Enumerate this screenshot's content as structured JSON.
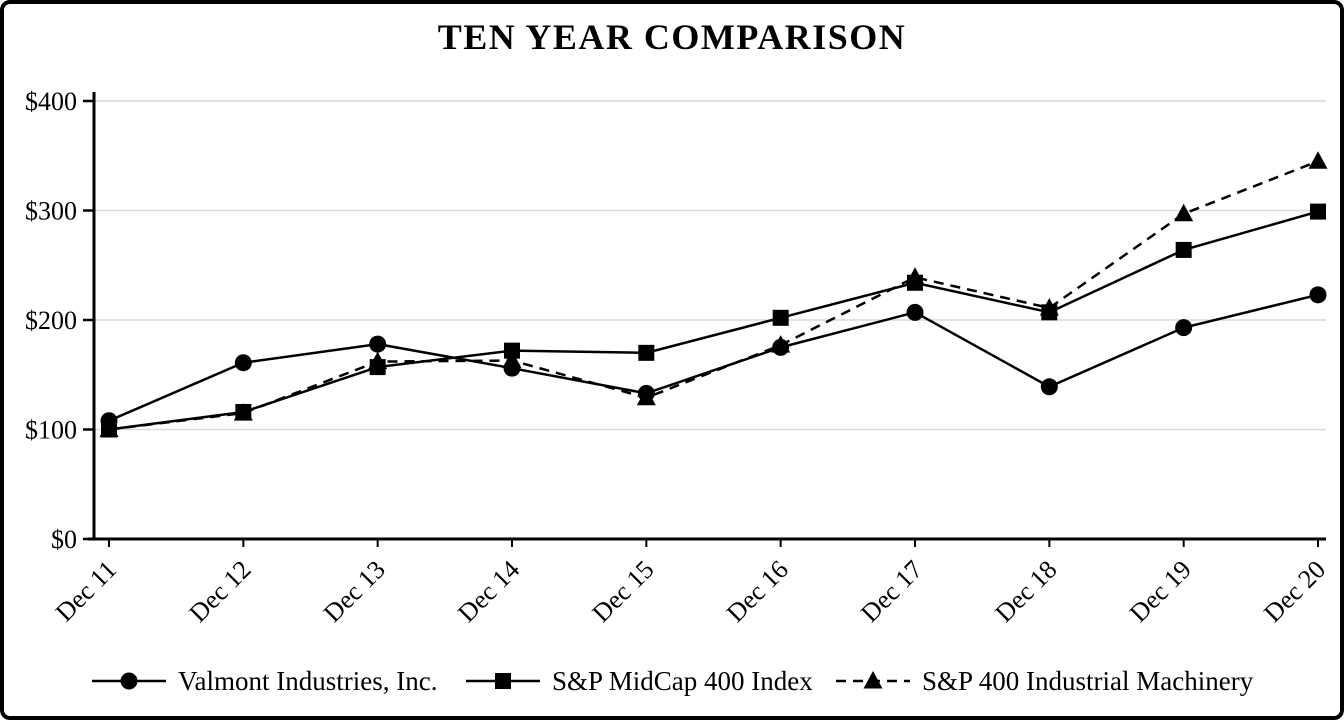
{
  "chart_data": {
    "type": "line",
    "title": "TEN YEAR COMPARISON",
    "categories": [
      "Dec 11",
      "Dec 12",
      "Dec 13",
      "Dec 14",
      "Dec 15",
      "Dec 16",
      "Dec 17",
      "Dec 18",
      "Dec 19",
      "Dec 20"
    ],
    "series": [
      {
        "name": "Valmont Industries, Inc.",
        "marker": "circle",
        "line_style": "solid",
        "values": [
          108,
          161,
          178,
          156,
          133,
          175,
          207,
          139,
          193,
          223
        ]
      },
      {
        "name": "S&P MidCap 400 Index",
        "marker": "square",
        "line_style": "solid",
        "values": [
          100,
          116,
          157,
          172,
          170,
          202,
          234,
          207,
          264,
          299
        ]
      },
      {
        "name": "S&P 400 Industrial Machinery",
        "marker": "triangle",
        "line_style": "dashed",
        "values": [
          100,
          115,
          162,
          163,
          129,
          177,
          239,
          211,
          297,
          345
        ]
      }
    ],
    "xlabel": "",
    "ylabel": "",
    "ylim": [
      0,
      400
    ],
    "yticks": [
      0,
      100,
      200,
      300,
      400
    ],
    "ytick_labels": [
      "$0",
      "$100",
      "$200",
      "$300",
      "$400"
    ],
    "grid": true,
    "legend_position": "bottom",
    "colors": {
      "line": "#000000",
      "marker": "#000000",
      "grid": "#d9d9d9",
      "axis": "#000000",
      "text": "#000000",
      "background": "#ffffff",
      "border": "#000000"
    }
  }
}
